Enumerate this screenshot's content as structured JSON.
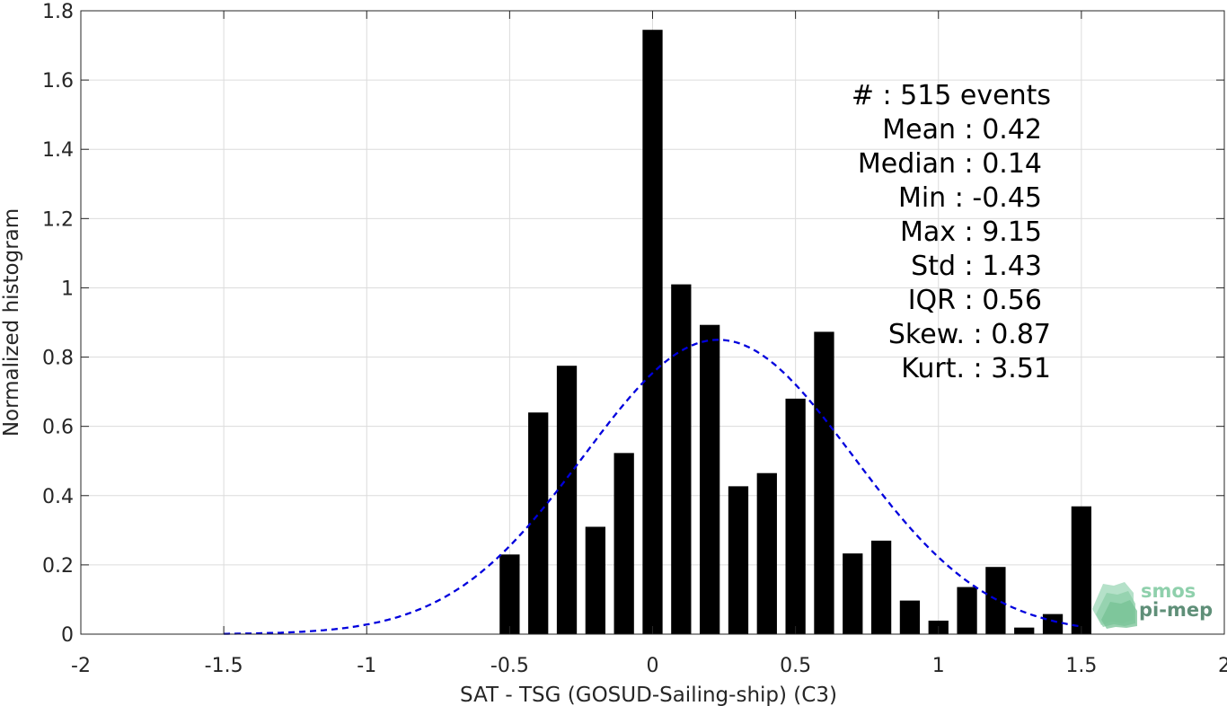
{
  "chart_data": {
    "type": "bar",
    "xlabel": "SAT - TSG (GOSUD-Sailing-ship) (C3)",
    "ylabel": "Normalized histogram",
    "xlim": [
      -2,
      2
    ],
    "ylim": [
      0,
      1.8
    ],
    "xticks": [
      "-2",
      "-1.5",
      "-1",
      "-0.5",
      "0",
      "0.5",
      "1",
      "1.5",
      "2"
    ],
    "yticks": [
      "0",
      "0.2",
      "0.4",
      "0.6",
      "0.8",
      "1",
      "1.2",
      "1.4",
      "1.6",
      "1.8"
    ],
    "grid": true,
    "bar_width": 0.07,
    "bar_color": "#000000",
    "bars": [
      {
        "x": -0.5,
        "value": 0.23
      },
      {
        "x": -0.4,
        "value": 0.64
      },
      {
        "x": -0.3,
        "value": 0.775
      },
      {
        "x": -0.2,
        "value": 0.31
      },
      {
        "x": -0.1,
        "value": 0.523
      },
      {
        "x": 0.0,
        "value": 1.745
      },
      {
        "x": 0.1,
        "value": 1.01
      },
      {
        "x": 0.2,
        "value": 0.893
      },
      {
        "x": 0.3,
        "value": 0.427
      },
      {
        "x": 0.4,
        "value": 0.465
      },
      {
        "x": 0.5,
        "value": 0.68
      },
      {
        "x": 0.6,
        "value": 0.873
      },
      {
        "x": 0.7,
        "value": 0.233
      },
      {
        "x": 0.8,
        "value": 0.27
      },
      {
        "x": 0.9,
        "value": 0.097
      },
      {
        "x": 1.0,
        "value": 0.039
      },
      {
        "x": 1.1,
        "value": 0.136
      },
      {
        "x": 1.2,
        "value": 0.194
      },
      {
        "x": 1.3,
        "value": 0.019
      },
      {
        "x": 1.4,
        "value": 0.058
      },
      {
        "x": 1.5,
        "value": 0.369
      }
    ],
    "fit_curve": {
      "style": "dashed",
      "color": "#0000dd",
      "mean": 0.23,
      "std": 0.47,
      "peak": 0.85,
      "x_range": [
        -1.5,
        1.5
      ]
    },
    "stats_lines": [
      "#  : 515 events",
      "Mean : 0.42",
      "Median : 0.14",
      "Min : -0.45",
      "Max : 9.15",
      "Std : 1.43",
      "IQR : 0.56",
      "Skew. : 0.87",
      "Kurt. : 3.51"
    ]
  },
  "logo": {
    "line1": "smos",
    "line2": "pi-mep"
  }
}
